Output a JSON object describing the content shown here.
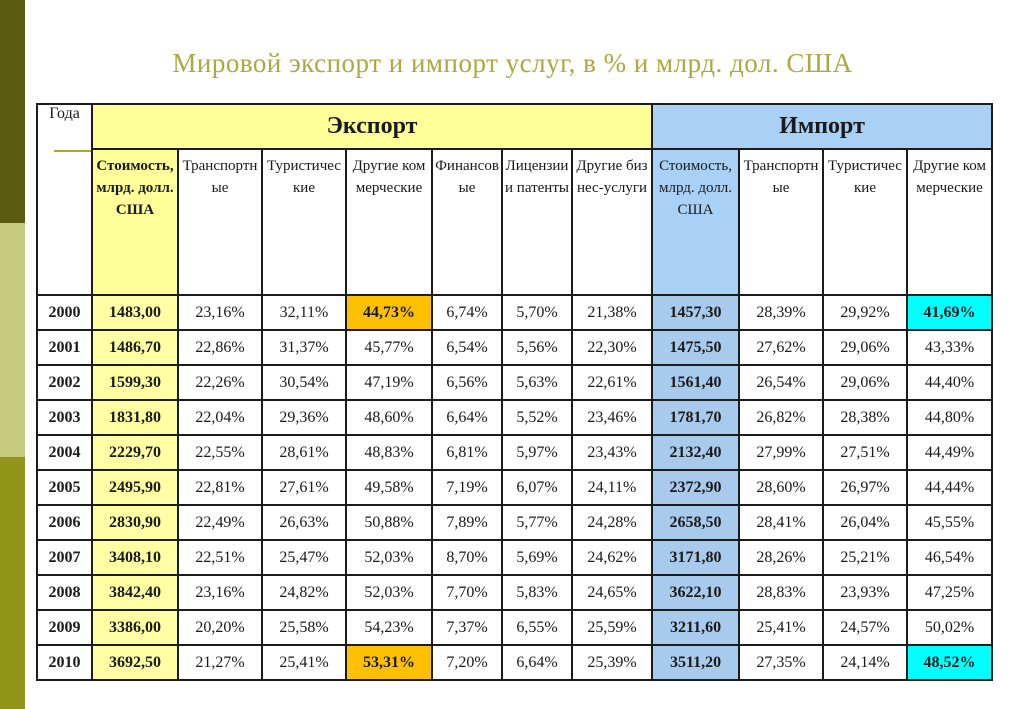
{
  "page": {
    "title": "Мировой экспорт и импорт услуг, в % и млрд. дол. США"
  },
  "colors": {
    "export_header_yellow": "#ffff99",
    "export_value_cell_yellow": "#ffffa3",
    "import_header_blue": "#a8d1f5",
    "import_value_cell_blue": "#a8cbed",
    "highlight_orange": "#ffc000",
    "highlight_cyan": "#00ffff",
    "title_olive": "#a9aa3f",
    "sidebar_dark": "#5b5c12",
    "sidebar_light": "#c7cb7f",
    "sidebar_olive": "#91961b"
  },
  "table": {
    "corner_header": "Года",
    "export_header": "Экспорт",
    "import_header": "Импорт",
    "export_columns": [
      "Стоимость, млрд. долл. США",
      "Транспортные",
      "Туристические",
      "Другие коммерческие",
      "Финансовые",
      "Лицензии и патенты",
      "Другие бизнес-услуги"
    ],
    "import_columns": [
      "Стоимость, млрд. долл. США",
      "Транспортные",
      "Туристические",
      "Другие коммерческие"
    ],
    "highlights": [
      {
        "row": 0,
        "col": 3,
        "color": "orange"
      },
      {
        "row": 0,
        "col": 10,
        "color": "cyan"
      },
      {
        "row": 10,
        "col": 3,
        "color": "orange"
      },
      {
        "row": 10,
        "col": 10,
        "color": "cyan"
      }
    ],
    "rows": [
      {
        "year": "2000",
        "values": [
          "1483,00",
          "23,16%",
          "32,11%",
          "44,73%",
          "6,74%",
          "5,70%",
          "21,38%",
          "1457,30",
          "28,39%",
          "29,92%",
          "41,69%"
        ]
      },
      {
        "year": "2001",
        "values": [
          "1486,70",
          "22,86%",
          "31,37%",
          "45,77%",
          "6,54%",
          "5,56%",
          "22,30%",
          "1475,50",
          "27,62%",
          "29,06%",
          "43,33%"
        ]
      },
      {
        "year": "2002",
        "values": [
          "1599,30",
          "22,26%",
          "30,54%",
          "47,19%",
          "6,56%",
          "5,63%",
          "22,61%",
          "1561,40",
          "26,54%",
          "29,06%",
          "44,40%"
        ]
      },
      {
        "year": "2003",
        "values": [
          "1831,80",
          "22,04%",
          "29,36%",
          "48,60%",
          "6,64%",
          "5,52%",
          "23,46%",
          "1781,70",
          "26,82%",
          "28,38%",
          "44,80%"
        ]
      },
      {
        "year": "2004",
        "values": [
          "2229,70",
          "22,55%",
          "28,61%",
          "48,83%",
          "6,81%",
          "5,97%",
          "23,43%",
          "2132,40",
          "27,99%",
          "27,51%",
          "44,49%"
        ]
      },
      {
        "year": "2005",
        "values": [
          "2495,90",
          "22,81%",
          "27,61%",
          "49,58%",
          "7,19%",
          "6,07%",
          "24,11%",
          "2372,90",
          "28,60%",
          "26,97%",
          "44,44%"
        ]
      },
      {
        "year": "2006",
        "values": [
          "2830,90",
          "22,49%",
          "26,63%",
          "50,88%",
          "7,89%",
          "5,77%",
          "24,28%",
          "2658,50",
          "28,41%",
          "26,04%",
          "45,55%"
        ]
      },
      {
        "year": "2007",
        "values": [
          "3408,10",
          "22,51%",
          "25,47%",
          "52,03%",
          "8,70%",
          "5,69%",
          "24,62%",
          "3171,80",
          "28,26%",
          "25,21%",
          "46,54%"
        ]
      },
      {
        "year": "2008",
        "values": [
          "3842,40",
          "23,16%",
          "24,82%",
          "52,03%",
          "7,70%",
          "5,83%",
          "24,65%",
          "3622,10",
          "28,83%",
          "23,93%",
          "47,25%"
        ]
      },
      {
        "year": "2009",
        "values": [
          "3386,00",
          "20,20%",
          "25,58%",
          "54,23%",
          "7,37%",
          "6,55%",
          "25,59%",
          "3211,60",
          "25,41%",
          "24,57%",
          "50,02%"
        ]
      },
      {
        "year": "2010",
        "values": [
          "3692,50",
          "21,27%",
          "25,41%",
          "53,31%",
          "7,20%",
          "6,64%",
          "25,39%",
          "3511,20",
          "27,35%",
          "24,14%",
          "48,52%"
        ]
      }
    ]
  }
}
